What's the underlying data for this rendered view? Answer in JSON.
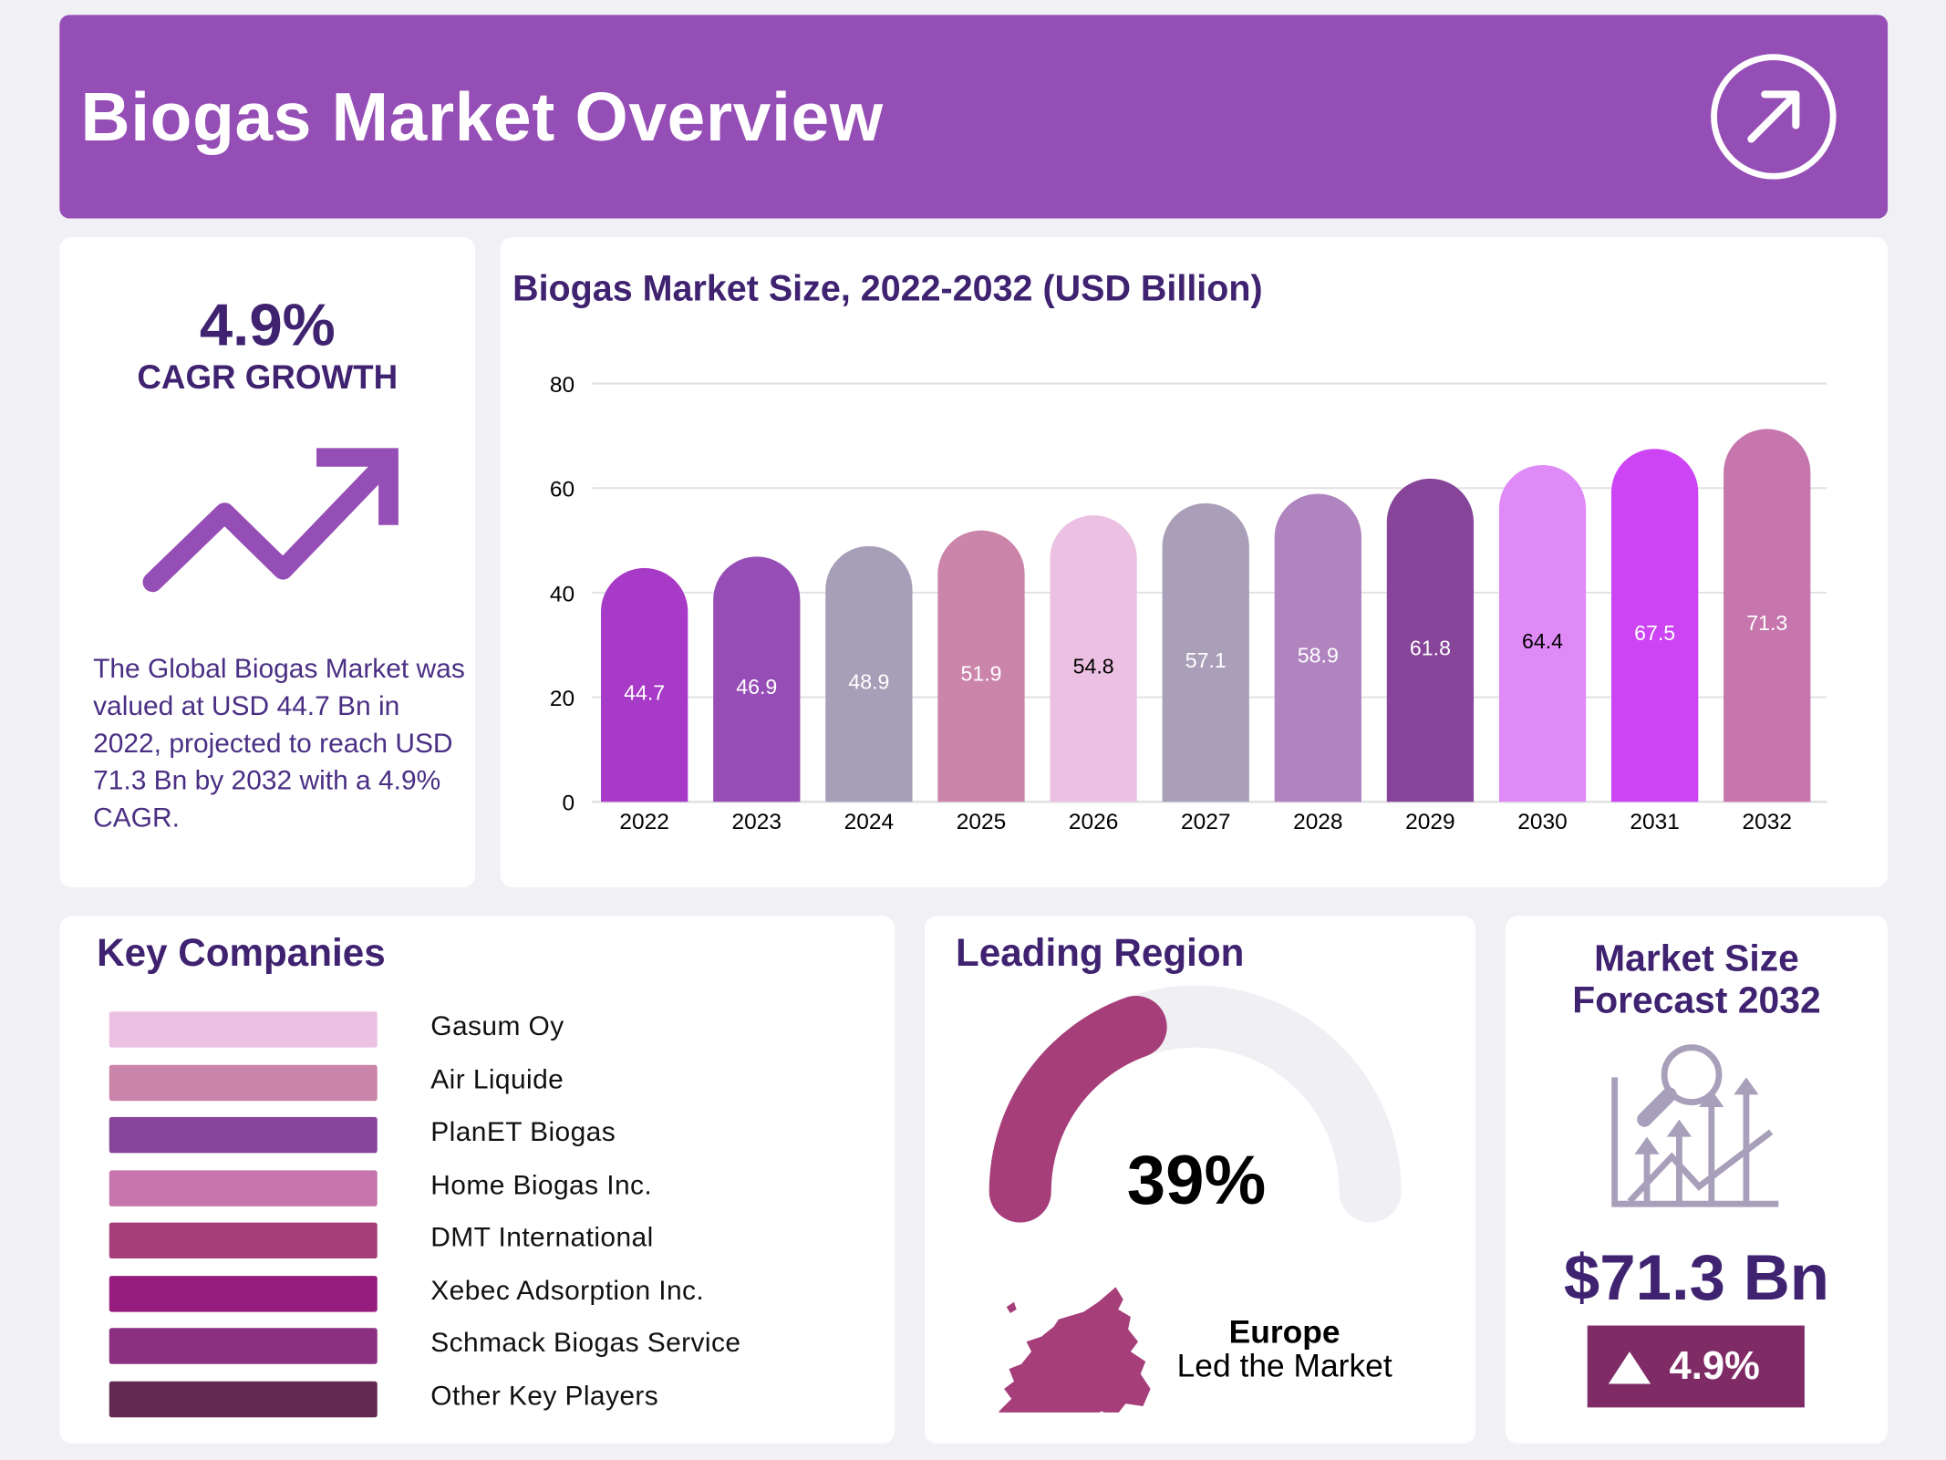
{
  "header": {
    "title": "Biogas Market Overview",
    "icon": "arrow-up-right-circle-icon"
  },
  "cagr": {
    "value": "4.9%",
    "label": "CAGR GROWTH",
    "icon": "trend-up-arrow-icon",
    "description": "The Global Biogas Market was valued at USD 44.7 Bn in 2022, projected to reach USD 71.3 Bn by 2032 with a 4.9% CAGR."
  },
  "chart_data": {
    "type": "bar",
    "title": "Biogas Market Size, 2022-2032 (USD Billion)",
    "categories": [
      "2022",
      "2023",
      "2024",
      "2025",
      "2026",
      "2027",
      "2028",
      "2029",
      "2030",
      "2031",
      "2032"
    ],
    "values": [
      44.7,
      46.9,
      48.9,
      51.9,
      54.8,
      57.1,
      58.9,
      61.8,
      64.4,
      67.5,
      71.3
    ],
    "labels": [
      "44.7",
      "46.9",
      "48.9",
      "51.9",
      "54.8",
      "57.1",
      "58.9",
      "61.8",
      "64.4",
      "67.5",
      "71.3"
    ],
    "colors": [
      "#A73AC7",
      "#964DB5",
      "#A79EB7",
      "#CB84AA",
      "#ECC0E3",
      "#A99FB8",
      "#B084BF",
      "#864599",
      "#E08AF8",
      "#CC44F4",
      "#C676AC"
    ],
    "label_colors": [
      "#ffffff",
      "#ffffff",
      "#ffffff",
      "#ffffff",
      "#000000",
      "#ffffff",
      "#ffffff",
      "#ffffff",
      "#000000",
      "#ffffff",
      "#ffffff"
    ],
    "yticks": [
      "0",
      "20",
      "40",
      "60",
      "80"
    ],
    "ylim": [
      0,
      80
    ],
    "grid": true
  },
  "companies": {
    "title": "Key Companies",
    "items": [
      {
        "name": "Gasum Oy",
        "color": "#ECC0E3"
      },
      {
        "name": "Air Liquide",
        "color": "#CB84AA"
      },
      {
        "name": "PlanET Biogas",
        "color": "#864599"
      },
      {
        "name": "Home Biogas Inc.",
        "color": "#C676AC"
      },
      {
        "name": "DMT International",
        "color": "#A63E7A"
      },
      {
        "name": "Xebec Adsorption Inc.",
        "color": "#961D7E"
      },
      {
        "name": "Schmack Biogas Service",
        "color": "#8B3080"
      },
      {
        "name": "Other Key Players",
        "color": "#632950"
      }
    ]
  },
  "region": {
    "title": "Leading Region",
    "percent": "39%",
    "share": 39,
    "name": "Europe",
    "subtitle": "Led the Market",
    "gauge_color": "#A63E7A",
    "track_color": "#F0EFF4",
    "icon": "europe-map-icon"
  },
  "forecast": {
    "title_line1": "Market Size",
    "title_line2": "Forecast 2032",
    "value": "$71.3 Bn",
    "growth": "4.9%",
    "badge_color": "#7E2B66",
    "icon": "market-analysis-chart-icon"
  }
}
